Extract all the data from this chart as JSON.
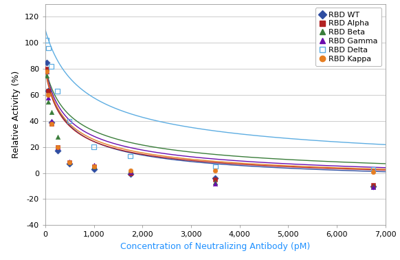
{
  "title": "",
  "xlabel": "Concentration of Neutralizing Antibody (pM)",
  "ylabel": "Relative Activity (%)",
  "xlim": [
    0,
    7000
  ],
  "ylim": [
    -40,
    130
  ],
  "yticks": [
    -40,
    -20,
    0,
    20,
    40,
    60,
    80,
    100,
    120
  ],
  "xticks": [
    0,
    1000,
    2000,
    3000,
    4000,
    5000,
    6000,
    7000
  ],
  "xtick_labels": [
    "0",
    "1,000",
    "2,000",
    "3,000",
    "4,000",
    "5,000",
    "6,000",
    "7,000"
  ],
  "series": {
    "RBD WT": {
      "color": "#2e4da1",
      "marker": "D",
      "marker_color": "#2e4da1",
      "x": [
        31,
        62,
        125,
        250,
        500,
        1000,
        1750,
        3500,
        6750
      ],
      "y": [
        85,
        63,
        39,
        17,
        7,
        3,
        -1,
        -4,
        -10
      ]
    },
    "RBD Alpha": {
      "color": "#b22222",
      "marker": "s",
      "marker_color": "#b22222",
      "x": [
        31,
        62,
        125,
        250,
        500,
        1000,
        1750,
        3500,
        6750
      ],
      "y": [
        80,
        63,
        38,
        20,
        8,
        5,
        0,
        -5,
        -9
      ]
    },
    "RBD Beta": {
      "color": "#3a7d3a",
      "marker": "^",
      "marker_color": "#3a7d3a",
      "x": [
        31,
        62,
        125,
        250,
        500,
        1000,
        1750,
        3500,
        6750
      ],
      "y": [
        75,
        55,
        47,
        28,
        8,
        5,
        2,
        -7,
        -10
      ]
    },
    "RBD Gamma": {
      "color": "#6a0dad",
      "marker": "^",
      "marker_color": "#6a0dad",
      "x": [
        31,
        62,
        125,
        250,
        500,
        1000,
        1750,
        3500,
        6750
      ],
      "y": [
        78,
        58,
        40,
        20,
        9,
        6,
        1,
        -8,
        -11
      ]
    },
    "RBD Delta": {
      "color": "#5dade2",
      "marker": "s",
      "marker_color": "#5dade2",
      "x": [
        31,
        62,
        125,
        250,
        500,
        1000,
        1750,
        3500,
        6750
      ],
      "y": [
        102,
        96,
        82,
        63,
        40,
        20,
        13,
        5,
        3
      ]
    },
    "RBD Kappa": {
      "color": "#e67e22",
      "marker": "o",
      "marker_color": "#e67e22",
      "x": [
        31,
        62,
        125,
        250,
        500,
        1000,
        1750,
        3500,
        6750
      ],
      "y": [
        78,
        60,
        38,
        20,
        8,
        5,
        2,
        2,
        1
      ]
    }
  },
  "curve_params": {
    "RBD WT": {
      "A": 95,
      "k": 0.0045,
      "n": 0.55,
      "C": -13
    },
    "RBD Alpha": {
      "A": 90,
      "k": 0.0045,
      "n": 0.55,
      "C": -11
    },
    "RBD Beta": {
      "A": 92,
      "k": 0.0035,
      "n": 0.5,
      "C": -11
    },
    "RBD Gamma": {
      "A": 93,
      "k": 0.004,
      "n": 0.52,
      "C": -12
    },
    "RBD Delta": {
      "A": 115,
      "k": 0.0022,
      "n": 0.52,
      "C": -5
    },
    "RBD Kappa": {
      "A": 91,
      "k": 0.0042,
      "n": 0.55,
      "C": -11
    }
  },
  "legend_order": [
    "RBD WT",
    "RBD Alpha",
    "RBD Beta",
    "RBD Gamma",
    "RBD Delta",
    "RBD Kappa"
  ],
  "background_color": "#ffffff",
  "grid_color": "#cccccc",
  "xlabel_color": "#1e90ff",
  "ylabel_color": "#000000",
  "figsize": [
    5.82,
    3.78
  ],
  "dpi": 100
}
